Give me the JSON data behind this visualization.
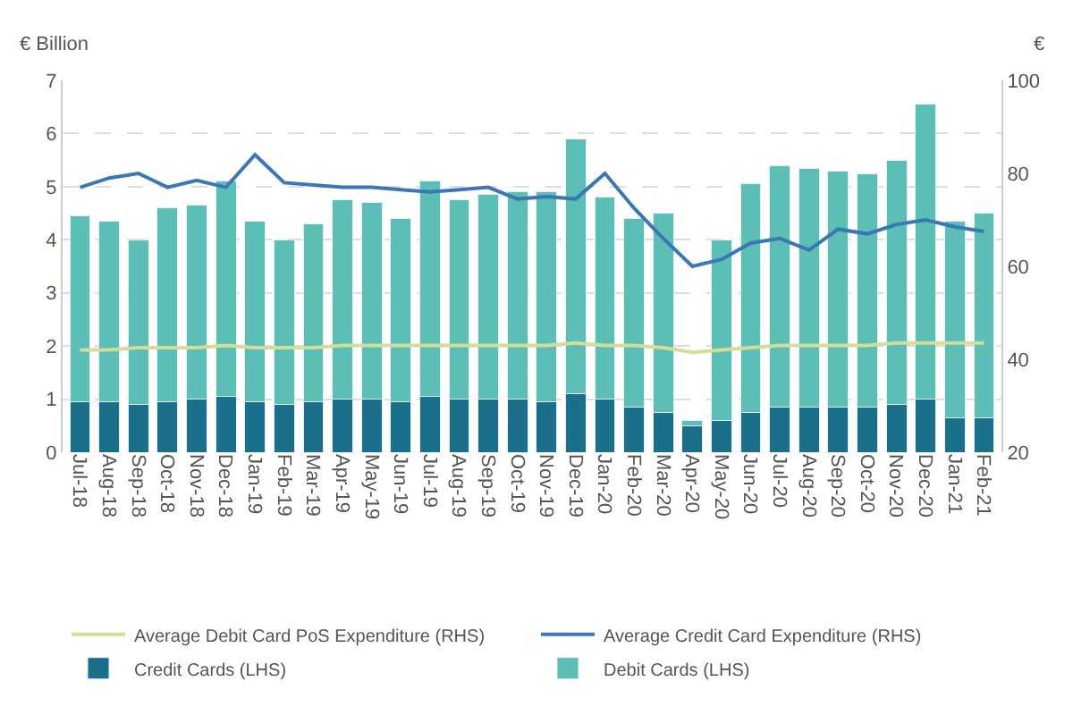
{
  "chart_data": {
    "type": "bar",
    "stacked": true,
    "ylabel": "€ Billion",
    "y2label": "€",
    "categories": [
      "Jul-18",
      "Aug-18",
      "Sep-18",
      "Oct-18",
      "Nov-18",
      "Dec-18",
      "Jan-19",
      "Feb-19",
      "Mar-19",
      "Apr-19",
      "May-19",
      "Jun-19",
      "Jul-19",
      "Aug-19",
      "Sep-19",
      "Oct-19",
      "Nov-19",
      "Dec-19",
      "Jan-20",
      "Feb-20",
      "Mar-20",
      "Apr-20",
      "May-20",
      "Jun-20",
      "Jul-20",
      "Aug-20",
      "Sep-20",
      "Oct-20",
      "Nov-20",
      "Dec-20",
      "Jan-21",
      "Feb-21"
    ],
    "series": [
      {
        "name": "Credit Cards (LHS)",
        "color": "#1a6f8a",
        "values": [
          0.95,
          0.95,
          0.9,
          0.95,
          1.0,
          1.05,
          0.95,
          0.9,
          0.95,
          1.0,
          1.0,
          0.95,
          1.05,
          1.0,
          1.0,
          1.0,
          0.95,
          1.1,
          1.0,
          0.85,
          0.75,
          0.5,
          0.6,
          0.75,
          0.85,
          0.85,
          0.85,
          0.85,
          0.9,
          1.0,
          0.65,
          0.65
        ]
      },
      {
        "name": "Debit Cards (LHS)",
        "color": "#5bbfb5",
        "values": [
          3.5,
          3.4,
          3.1,
          3.65,
          3.65,
          4.05,
          3.4,
          3.1,
          3.35,
          3.75,
          3.7,
          3.45,
          4.05,
          3.75,
          3.85,
          3.9,
          3.95,
          4.8,
          3.8,
          3.55,
          3.75,
          0.1,
          3.4,
          4.3,
          4.55,
          4.5,
          4.45,
          4.4,
          4.6,
          5.55,
          3.7,
          3.85
        ]
      },
      {
        "name": "Average Credit Card Expenditure (RHS)",
        "type": "line",
        "axis": "y2",
        "color": "#3a78b5",
        "values": [
          77,
          79,
          80,
          77,
          78.5,
          77,
          84,
          78,
          77.5,
          77,
          77,
          76.5,
          76,
          76.5,
          77,
          74.5,
          75,
          74.5,
          80,
          72.5,
          66,
          60,
          61.5,
          65,
          66,
          63.5,
          68,
          67,
          69,
          70,
          68.5,
          67.5
        ]
      },
      {
        "name": "Average Debit Card PoS Expenditure (RHS)",
        "type": "line",
        "axis": "y2",
        "color": "#d4dc9a",
        "values": [
          42,
          42,
          42.5,
          42.5,
          42.5,
          43,
          42.5,
          42.5,
          42.5,
          43,
          43,
          43,
          43,
          43,
          43,
          43,
          43,
          43.5,
          43,
          43,
          42.5,
          41.5,
          42,
          42.5,
          43,
          43,
          43,
          43,
          43.5,
          43.5,
          43.5,
          43.5
        ]
      }
    ],
    "ylim": [
      0,
      7
    ],
    "yticks": [
      0,
      1,
      2,
      3,
      4,
      5,
      6,
      7
    ],
    "y2lim": [
      20,
      100
    ],
    "y2ticks": [
      20,
      40,
      60,
      80,
      100
    ],
    "grid": "y",
    "legend": "bottom"
  }
}
